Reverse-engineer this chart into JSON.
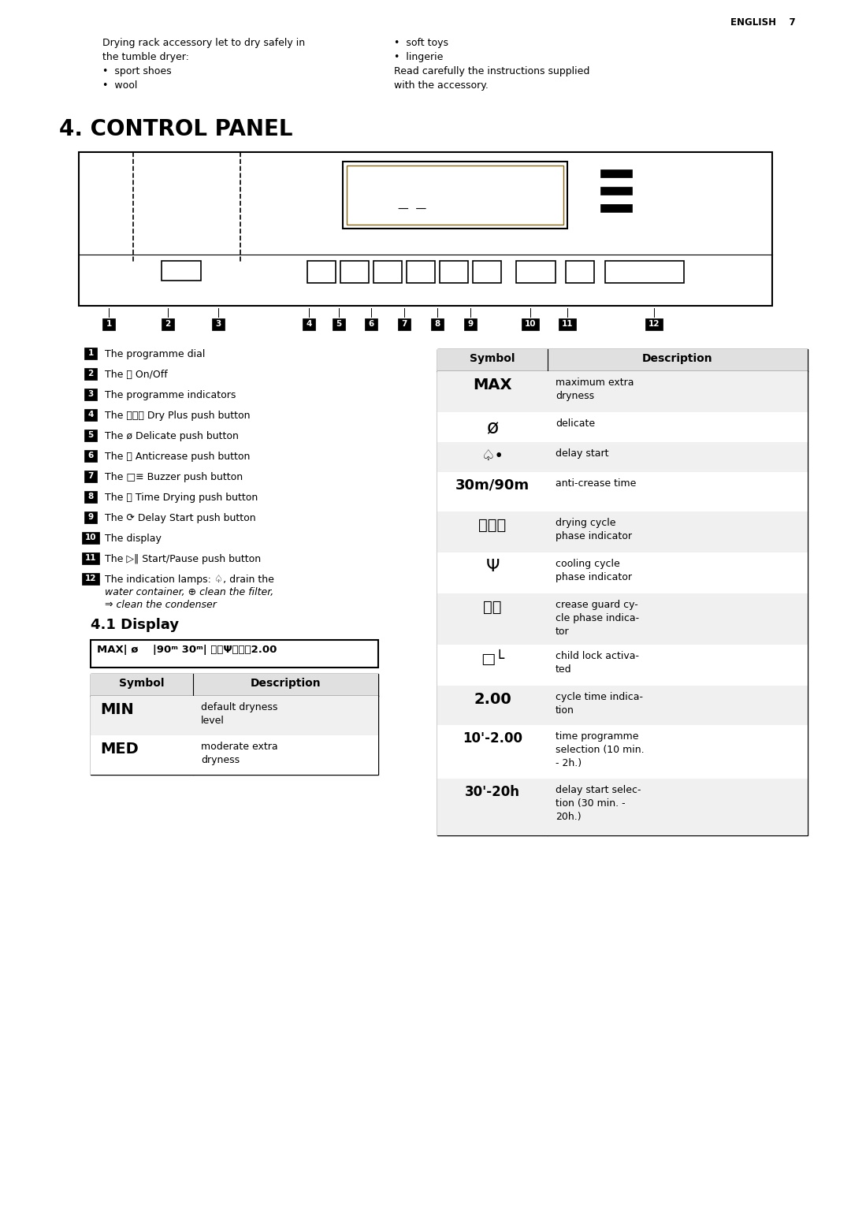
{
  "page_header": "ENGLISH    7",
  "bg_color": "#ffffff",
  "intro_left": [
    "Drying rack accessory let to dry safely in",
    "the tumble dryer:",
    "•  sport shoes",
    "•  wool"
  ],
  "intro_right": [
    "•  soft toys",
    "•  lingerie",
    "Read carefully the instructions supplied",
    "with the accessory."
  ],
  "section_title": "4. CONTROL PANEL",
  "subsection_title": "4.1 Display",
  "display_box_text": "MAX| ø    |90ᵐ 30ᵐ| ⧟⧟Ψⓜ⎕⌚2.00",
  "left_items": [
    {
      "num": "1",
      "text": "The programme dial",
      "italic": false
    },
    {
      "num": "2",
      "text": "The ⓘ On/Off",
      "italic": false
    },
    {
      "num": "3",
      "text": "The programme indicators",
      "italic": false
    },
    {
      "num": "4",
      "text": "The ⧟⧟⧟ Dry Plus push button",
      "italic": false
    },
    {
      "num": "5",
      "text": "The ø Delicate push button",
      "italic": false
    },
    {
      "num": "6",
      "text": "The ⓜ Anticrease push button",
      "italic": false
    },
    {
      "num": "7",
      "text": "The □≡ Buzzer push button",
      "italic": false
    },
    {
      "num": "8",
      "text": "The ⌚ Time Drying push button",
      "italic": false
    },
    {
      "num": "9",
      "text": "The ⟳ Delay Start push button",
      "italic": false
    },
    {
      "num": "10",
      "text": "The display",
      "italic": false
    },
    {
      "num": "11",
      "text": "The ▷‖ Start/Pause push button",
      "italic": false
    },
    {
      "num": "12",
      "text": "The indication lamps: ♤, drain the",
      "italic": false,
      "extra": [
        "water container, ⊕ clean the filter,",
        "⇒ clean the condenser"
      ]
    }
  ],
  "left_table_rows": [
    {
      "sym": "MIN",
      "desc": "default dryness\nlevel"
    },
    {
      "sym": "MED",
      "desc": "moderate extra\ndryness"
    }
  ],
  "right_table_rows": [
    {
      "sym": "MAX",
      "desc": "maximum extra\ndryness",
      "sym_bold": true,
      "sym_fs": 14
    },
    {
      "sym": "ø",
      "desc": "delicate",
      "sym_bold": false,
      "sym_fs": 18
    },
    {
      "sym": "♤•",
      "desc": "delay start",
      "sym_bold": false,
      "sym_fs": 14
    },
    {
      "sym": "30m/90m",
      "desc": "anti-crease time",
      "sym_bold": true,
      "sym_fs": 13
    },
    {
      "sym": "⧟⧟⧟",
      "desc": "drying cycle\nphase indicator",
      "sym_bold": false,
      "sym_fs": 14
    },
    {
      "sym": "Ψ",
      "desc": "cooling cycle\nphase indicator",
      "sym_bold": false,
      "sym_fs": 16
    },
    {
      "sym": "ⓜ⎕",
      "desc": "crease guard cy-\ncle phase indica-\ntor",
      "sym_bold": false,
      "sym_fs": 14
    },
    {
      "sym": "□└",
      "desc": "child lock activa-\nted",
      "sym_bold": false,
      "sym_fs": 14
    },
    {
      "sym": "2.00",
      "desc": "cycle time indica-\ntion",
      "sym_bold": true,
      "sym_fs": 14
    },
    {
      "sym": "10'-2.00",
      "desc": "time programme\nselection (10 min.\n- 2h.)",
      "sym_bold": true,
      "sym_fs": 12
    },
    {
      "sym": "30'-20h",
      "desc": "delay start selec-\ntion (30 min. -\n20h.)",
      "sym_bold": true,
      "sym_fs": 12
    }
  ],
  "right_row_heights": [
    52,
    38,
    38,
    50,
    52,
    52,
    65,
    52,
    50,
    68,
    72
  ]
}
